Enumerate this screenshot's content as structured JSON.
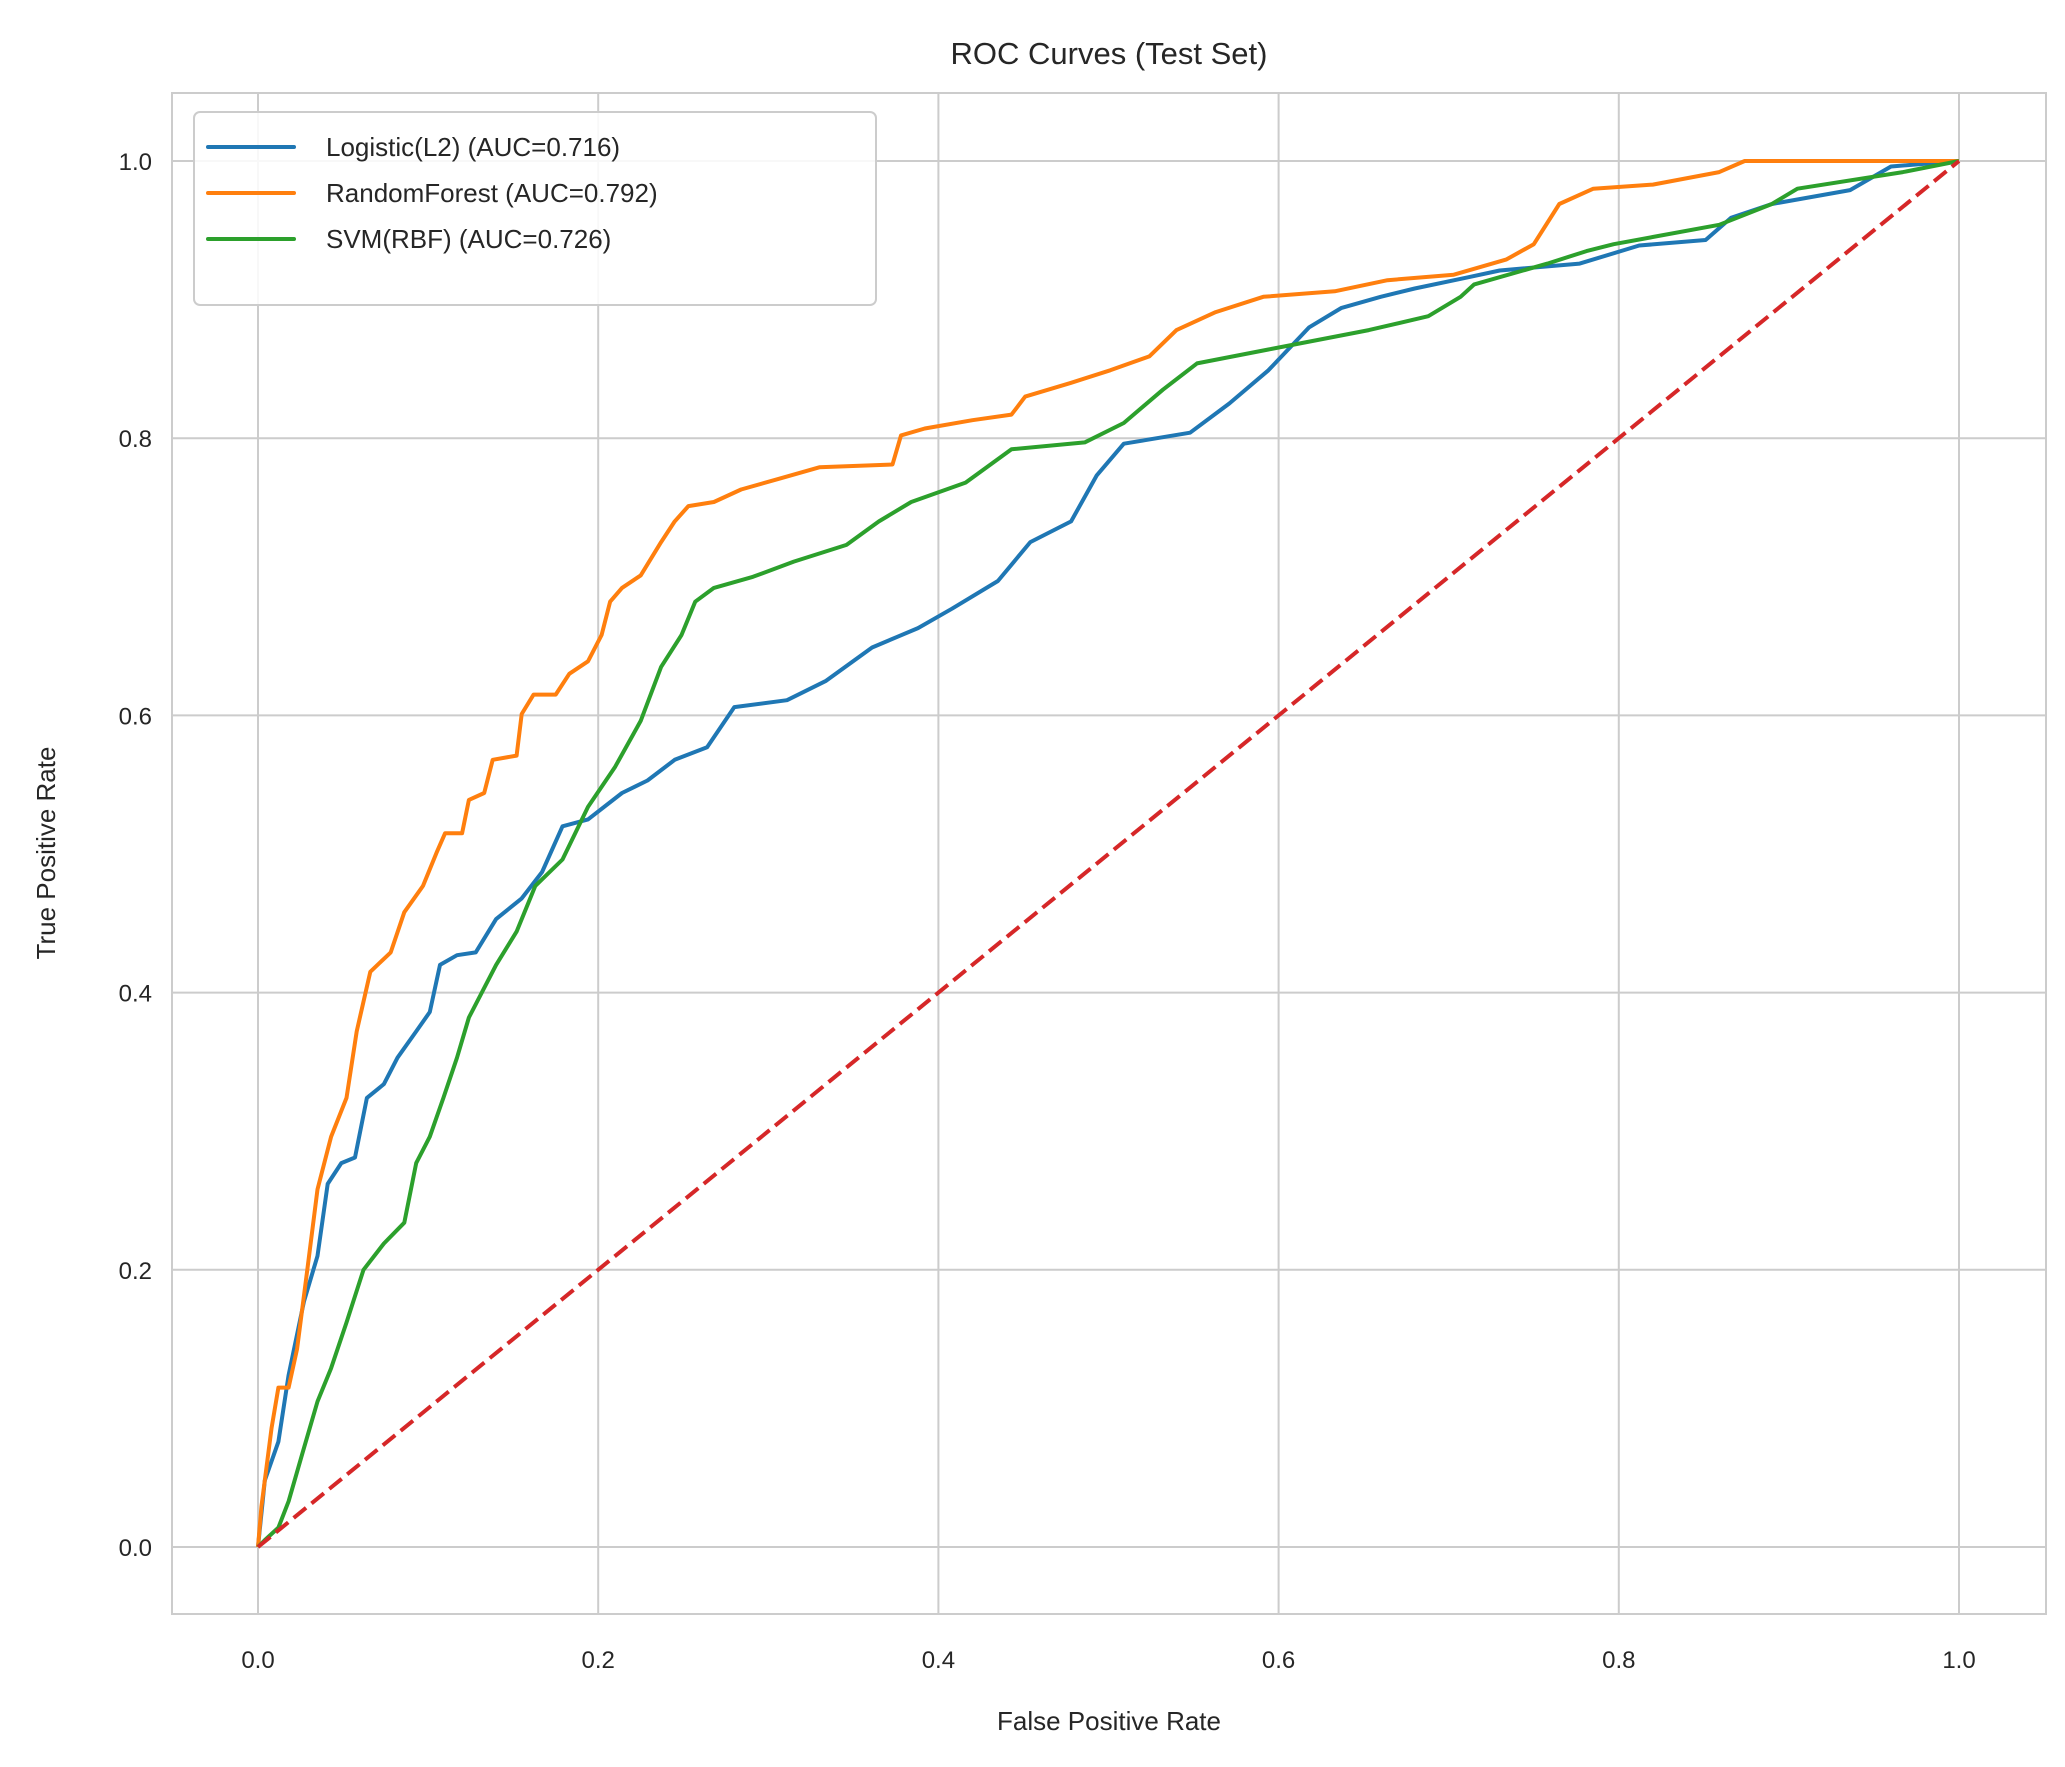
{
  "chart_data": {
    "type": "line",
    "title": "ROC Curves (Test Set)",
    "xlabel": "False Positive Rate",
    "ylabel": "True Positive Rate",
    "xlim": [
      -0.05,
      1.05
    ],
    "ylim": [
      -0.05,
      1.05
    ],
    "xticks": [
      "0.0",
      "0.2",
      "0.4",
      "0.6",
      "0.8",
      "1.0"
    ],
    "yticks": [
      "0.0",
      "0.2",
      "0.4",
      "0.6",
      "0.8",
      "1.0"
    ],
    "grid": true,
    "legend_position": "top-left",
    "series": [
      {
        "name": "Logistic(L2) (AUC=0.716)",
        "color": "#1f77b4",
        "x": [
          0,
          0.004,
          0.012,
          0.018,
          0.027,
          0.035,
          0.041,
          0.049,
          0.057,
          0.064,
          0.074,
          0.082,
          0.093,
          0.101,
          0.107,
          0.117,
          0.128,
          0.14,
          0.155,
          0.167,
          0.179,
          0.194,
          0.214,
          0.229,
          0.245,
          0.264,
          0.28,
          0.311,
          0.334,
          0.361,
          0.388,
          0.408,
          0.435,
          0.454,
          0.478,
          0.493,
          0.509,
          0.548,
          0.571,
          0.594,
          0.618,
          0.637,
          0.66,
          0.68,
          0.711,
          0.73,
          0.777,
          0.812,
          0.851,
          0.866,
          0.89,
          0.936,
          0.96,
          1
        ],
        "y": [
          0,
          0.048,
          0.076,
          0.124,
          0.177,
          0.21,
          0.262,
          0.277,
          0.281,
          0.324,
          0.334,
          0.353,
          0.372,
          0.386,
          0.42,
          0.427,
          0.429,
          0.453,
          0.468,
          0.487,
          0.52,
          0.525,
          0.544,
          0.553,
          0.568,
          0.577,
          0.606,
          0.611,
          0.625,
          0.649,
          0.663,
          0.677,
          0.697,
          0.725,
          0.74,
          0.773,
          0.796,
          0.804,
          0.825,
          0.849,
          0.88,
          0.894,
          0.902,
          0.908,
          0.916,
          0.921,
          0.926,
          0.939,
          0.943,
          0.959,
          0.969,
          0.979,
          0.996,
          1
        ]
      },
      {
        "name": "RandomForest (AUC=0.792)",
        "color": "#ff7f0e",
        "x": [
          0,
          0.002,
          0.008,
          0.012,
          0.018,
          0.023,
          0.029,
          0.035,
          0.043,
          0.052,
          0.058,
          0.066,
          0.078,
          0.086,
          0.097,
          0.105,
          0.11,
          0.12,
          0.124,
          0.133,
          0.138,
          0.152,
          0.155,
          0.162,
          0.175,
          0.183,
          0.194,
          0.202,
          0.207,
          0.214,
          0.225,
          0.237,
          0.245,
          0.253,
          0.268,
          0.284,
          0.307,
          0.33,
          0.373,
          0.378,
          0.392,
          0.42,
          0.443,
          0.451,
          0.478,
          0.501,
          0.524,
          0.54,
          0.563,
          0.591,
          0.633,
          0.664,
          0.703,
          0.734,
          0.75,
          0.765,
          0.785,
          0.82,
          0.859,
          0.874,
          1
        ],
        "y": [
          0,
          0.029,
          0.086,
          0.115,
          0.115,
          0.143,
          0.2,
          0.258,
          0.296,
          0.324,
          0.372,
          0.415,
          0.429,
          0.458,
          0.477,
          0.501,
          0.515,
          0.515,
          0.539,
          0.544,
          0.568,
          0.571,
          0.601,
          0.615,
          0.615,
          0.63,
          0.639,
          0.658,
          0.682,
          0.692,
          0.701,
          0.725,
          0.74,
          0.751,
          0.754,
          0.763,
          0.771,
          0.779,
          0.781,
          0.802,
          0.807,
          0.813,
          0.817,
          0.83,
          0.84,
          0.849,
          0.859,
          0.878,
          0.891,
          0.902,
          0.906,
          0.914,
          0.918,
          0.929,
          0.94,
          0.969,
          0.98,
          0.983,
          0.992,
          1,
          1
        ]
      },
      {
        "name": "SVM(RBF) (AUC=0.726)",
        "color": "#2ca02c",
        "x": [
          0,
          0.004,
          0.012,
          0.018,
          0.026,
          0.035,
          0.043,
          0.052,
          0.062,
          0.074,
          0.086,
          0.093,
          0.101,
          0.109,
          0.117,
          0.124,
          0.14,
          0.152,
          0.163,
          0.179,
          0.194,
          0.21,
          0.225,
          0.237,
          0.249,
          0.257,
          0.268,
          0.291,
          0.315,
          0.346,
          0.365,
          0.384,
          0.416,
          0.443,
          0.486,
          0.509,
          0.532,
          0.552,
          0.594,
          0.653,
          0.688,
          0.707,
          0.715,
          0.758,
          0.781,
          0.797,
          0.859,
          0.89,
          0.905,
          0.967,
          1
        ],
        "y": [
          0,
          0.005,
          0.014,
          0.033,
          0.067,
          0.105,
          0.129,
          0.162,
          0.2,
          0.219,
          0.234,
          0.277,
          0.296,
          0.324,
          0.353,
          0.382,
          0.42,
          0.444,
          0.477,
          0.496,
          0.534,
          0.563,
          0.596,
          0.635,
          0.658,
          0.682,
          0.692,
          0.7,
          0.711,
          0.723,
          0.74,
          0.754,
          0.768,
          0.792,
          0.797,
          0.811,
          0.835,
          0.854,
          0.864,
          0.878,
          0.888,
          0.902,
          0.911,
          0.926,
          0.935,
          0.94,
          0.954,
          0.969,
          0.98,
          0.992,
          1
        ]
      },
      {
        "color": "#d62728",
        "style": "dashed",
        "x": [
          0,
          1
        ],
        "y": [
          0,
          1
        ]
      }
    ]
  }
}
